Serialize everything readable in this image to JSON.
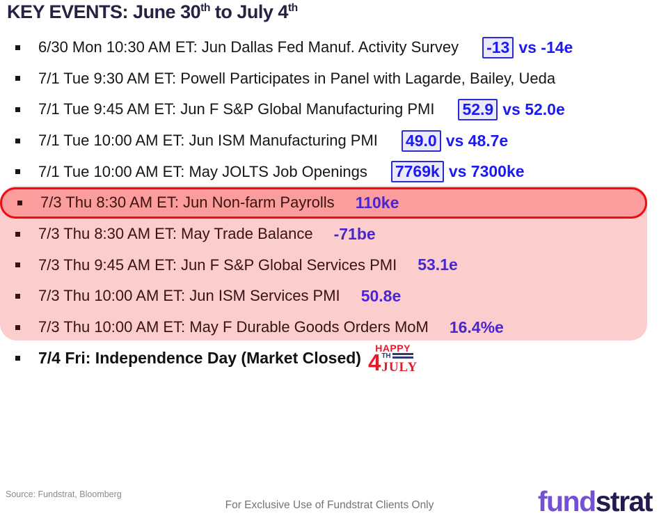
{
  "title": {
    "part1": "KEY EVENTS: June 30",
    "sup1": "th",
    "part2": " to July 4",
    "sup2": "th"
  },
  "events": [
    {
      "text": "6/30 Mon 10:30 AM ET: Jun Dallas Fed Manuf. Activity Survey",
      "value": "-13",
      "estimate": "vs  -14e"
    },
    {
      "text": "7/1 Tue 9:30 AM ET: Powell Participates in Panel with Lagarde, Bailey, Ueda"
    },
    {
      "text": "7/1 Tue 9:45 AM ET: Jun F S&P Global Manufacturing PMI",
      "value": "52.9",
      "estimate": "vs 52.0e"
    },
    {
      "text": "7/1 Tue 10:00 AM ET: Jun ISM Manufacturing PMI",
      "value": "49.0",
      "estimate": "vs 48.7e"
    },
    {
      "text": "7/1 Tue 10:00 AM ET: May JOLTS Job Openings",
      "value": "7769k",
      "estimate": "vs 7300ke"
    },
    {
      "text": "7/3 Thu 8:30 AM ET: Jun Non-farm Payrolls",
      "value": "110ke",
      "highlighted": true
    },
    {
      "text": "7/3 Thu 8:30 AM ET: May Trade Balance",
      "value": "-71be"
    },
    {
      "text": "7/3 Thu 9:45 AM ET: Jun F S&P Global Services PMI",
      "value": "53.1e"
    },
    {
      "text": "7/3 Thu 10:00 AM ET: Jun ISM Services PMI",
      "value": "50.8e"
    },
    {
      "text": "7/3 Thu 10:00 AM ET: May F Durable Goods Orders MoM",
      "value": "16.4%e"
    }
  ],
  "holiday": {
    "text": "7/4 Fri: Independence Day (Market Closed)",
    "graphic": {
      "happy": "HAPPY",
      "four": "4",
      "th": "TH",
      "july": "JULY"
    }
  },
  "footer": {
    "source": "Source: Fundstrat, Bloomberg",
    "disclaimer": "For Exclusive Use of Fundstrat Clients Only"
  },
  "logo": {
    "part1": "fund",
    "part2": "strat"
  },
  "colors": {
    "title_navy": "#262243",
    "value_blue": "#1b1bf0",
    "value_box_fill": "#eaeafc",
    "value_box_border": "#2b2bd5",
    "pink_light": "#fbcdcd",
    "pink_dark": "#fb9d9d",
    "oval_red": "#ee0d0d",
    "pink_row_text": "#3b1212",
    "value_purple": "#4a26cf",
    "graphic_red": "#e8192c",
    "graphic_navy": "#2e3a76",
    "logo_purple": "#7450d6",
    "logo_navy": "#221c4e"
  }
}
